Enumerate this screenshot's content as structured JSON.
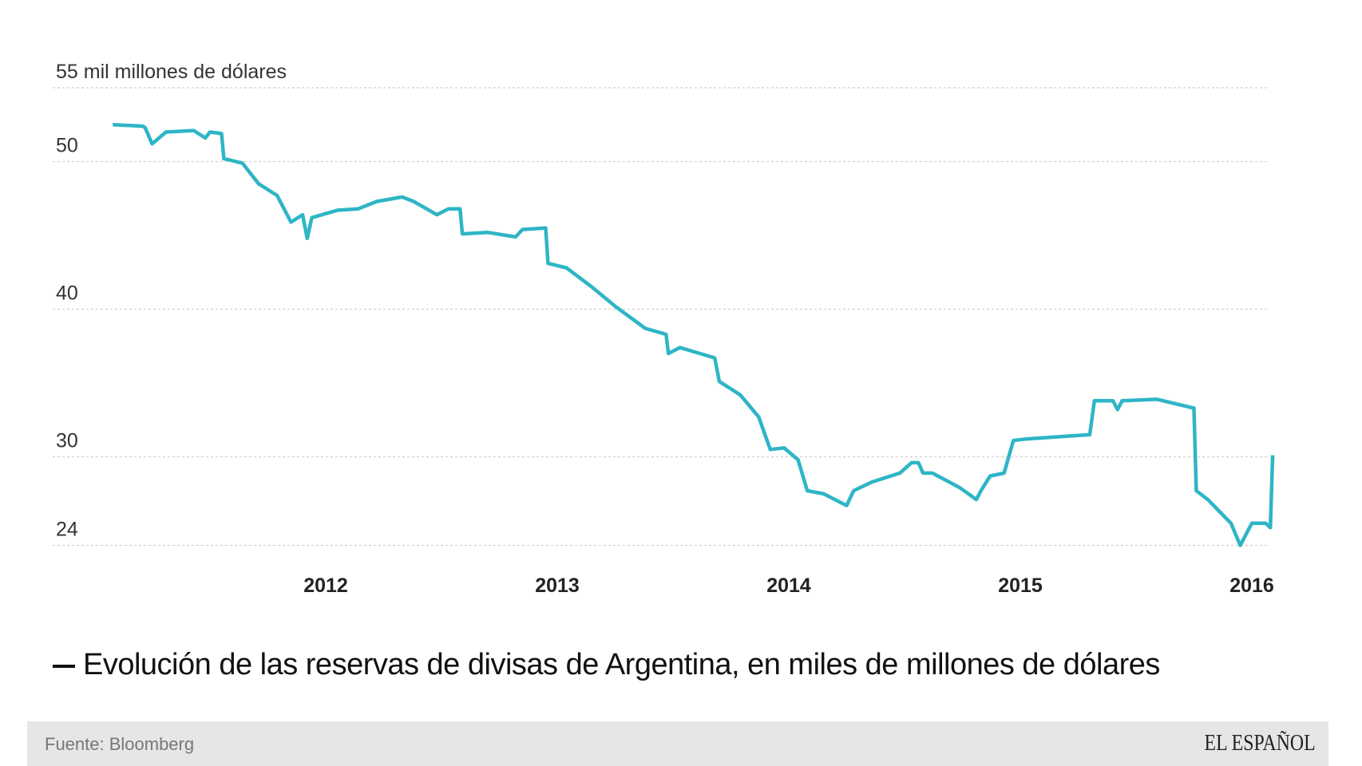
{
  "chart_data": {
    "type": "line",
    "title": "Evolución de las reservas de divisas de Argentina, en miles de millones de dólares",
    "xlabel": "",
    "ylabel": "mil millones de dólares",
    "y_top_label": "55 mil millones de dólares",
    "ylim": [
      24,
      55
    ],
    "y_ticks": [
      {
        "value": 55,
        "label": "55 mil millones de dólares"
      },
      {
        "value": 50,
        "label": "50"
      },
      {
        "value": 40,
        "label": "40"
      },
      {
        "value": 30,
        "label": "30"
      },
      {
        "value": 24,
        "label": "24"
      }
    ],
    "x_ticks": [
      {
        "value": 2012,
        "label": "2012"
      },
      {
        "value": 2013,
        "label": "2013"
      },
      {
        "value": 2014,
        "label": "2014"
      },
      {
        "value": 2015,
        "label": "2015"
      },
      {
        "value": 2016,
        "label": "2016"
      }
    ],
    "grid": "horizontal dashed",
    "color": "#2eb5c6",
    "series": [
      {
        "name": "Reservas",
        "points": [
          [
            2011.08,
            52.5
          ],
          [
            2011.21,
            52.4
          ],
          [
            2011.22,
            52.3
          ],
          [
            2011.25,
            51.2
          ],
          [
            2011.31,
            52.0
          ],
          [
            2011.43,
            52.1
          ],
          [
            2011.48,
            51.6
          ],
          [
            2011.5,
            52.0
          ],
          [
            2011.55,
            51.9
          ],
          [
            2011.56,
            50.2
          ],
          [
            2011.64,
            49.9
          ],
          [
            2011.71,
            48.5
          ],
          [
            2011.79,
            47.7
          ],
          [
            2011.85,
            45.9
          ],
          [
            2011.9,
            46.4
          ],
          [
            2011.92,
            44.8
          ],
          [
            2011.94,
            46.2
          ],
          [
            2012.05,
            46.7
          ],
          [
            2012.14,
            46.8
          ],
          [
            2012.22,
            47.3
          ],
          [
            2012.33,
            47.6
          ],
          [
            2012.38,
            47.3
          ],
          [
            2012.48,
            46.4
          ],
          [
            2012.53,
            46.8
          ],
          [
            2012.58,
            46.8
          ],
          [
            2012.59,
            45.1
          ],
          [
            2012.7,
            45.2
          ],
          [
            2012.82,
            44.9
          ],
          [
            2012.85,
            45.4
          ],
          [
            2012.95,
            45.5
          ],
          [
            2012.96,
            43.1
          ],
          [
            2013.04,
            42.8
          ],
          [
            2013.15,
            41.5
          ],
          [
            2013.25,
            40.2
          ],
          [
            2013.38,
            38.7
          ],
          [
            2013.47,
            38.3
          ],
          [
            2013.48,
            37.0
          ],
          [
            2013.53,
            37.4
          ],
          [
            2013.68,
            36.7
          ],
          [
            2013.7,
            35.1
          ],
          [
            2013.79,
            34.2
          ],
          [
            2013.87,
            32.7
          ],
          [
            2013.92,
            30.5
          ],
          [
            2013.98,
            30.6
          ],
          [
            2014.04,
            29.8
          ],
          [
            2014.08,
            27.7
          ],
          [
            2014.15,
            27.5
          ],
          [
            2014.25,
            26.7
          ],
          [
            2014.28,
            27.7
          ],
          [
            2014.36,
            28.3
          ],
          [
            2014.48,
            28.9
          ],
          [
            2014.53,
            29.6
          ],
          [
            2014.56,
            29.6
          ],
          [
            2014.58,
            28.9
          ],
          [
            2014.62,
            28.9
          ],
          [
            2014.74,
            27.9
          ],
          [
            2014.81,
            27.1
          ],
          [
            2014.83,
            27.7
          ],
          [
            2014.87,
            28.7
          ],
          [
            2014.93,
            28.9
          ],
          [
            2014.97,
            31.1
          ],
          [
            2015.02,
            31.2
          ],
          [
            2015.3,
            31.5
          ],
          [
            2015.32,
            33.8
          ],
          [
            2015.4,
            33.8
          ],
          [
            2015.42,
            33.2
          ],
          [
            2015.44,
            33.8
          ],
          [
            2015.59,
            33.9
          ],
          [
            2015.75,
            33.3
          ],
          [
            2015.76,
            27.7
          ],
          [
            2015.81,
            27.1
          ],
          [
            2015.91,
            25.5
          ],
          [
            2015.95,
            24.0
          ],
          [
            2016.0,
            25.5
          ],
          [
            2016.06,
            25.5
          ],
          [
            2016.08,
            25.2
          ],
          [
            2016.09,
            30.1
          ]
        ]
      }
    ]
  },
  "footer": {
    "source": "Fuente: Bloomberg",
    "logo": "EL ESPAÑOL"
  }
}
